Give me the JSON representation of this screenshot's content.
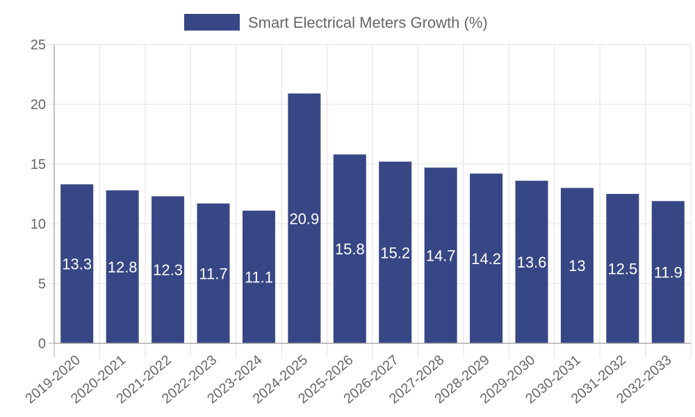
{
  "chart_data": {
    "type": "bar",
    "title": "",
    "xlabel": "",
    "ylabel": "",
    "categories": [
      "2019-2020",
      "2020-2021",
      "2021-2022",
      "2022-2023",
      "2023-2024",
      "2024-2025",
      "2025-2026",
      "2026-2027",
      "2027-2028",
      "2028-2029",
      "2029-2030",
      "2030-2031",
      "2031-2032",
      "2032-2033"
    ],
    "series": [
      {
        "name": "Smart Electrical Meters Growth (%)",
        "color": "#374785",
        "values": [
          13.3,
          12.8,
          12.3,
          11.7,
          11.1,
          20.9,
          15.8,
          15.2,
          14.7,
          14.2,
          13.6,
          13,
          12.5,
          11.9
        ],
        "data_labels": [
          "13.3",
          "12.8",
          "12.3",
          "11.7",
          "11.1",
          "20.9",
          "15.8",
          "15.2",
          "14.7",
          "14.2",
          "13.6",
          "13",
          "12.5",
          "11.9"
        ]
      }
    ],
    "ylim": [
      0,
      25
    ],
    "yticks": [
      "0",
      "5",
      "10",
      "15",
      "20",
      "25"
    ],
    "ytick_values": [
      0,
      5,
      10,
      15,
      20,
      25
    ],
    "grid": true,
    "legend": {
      "position": "top-center",
      "entries": [
        "Smart Electrical Meters Growth (%)"
      ]
    },
    "colors": {
      "bar": "#374785",
      "grid": "#e0e0e0",
      "axis": "#aaaaaa",
      "text": "#666666",
      "data_label": "#ffffff"
    }
  }
}
